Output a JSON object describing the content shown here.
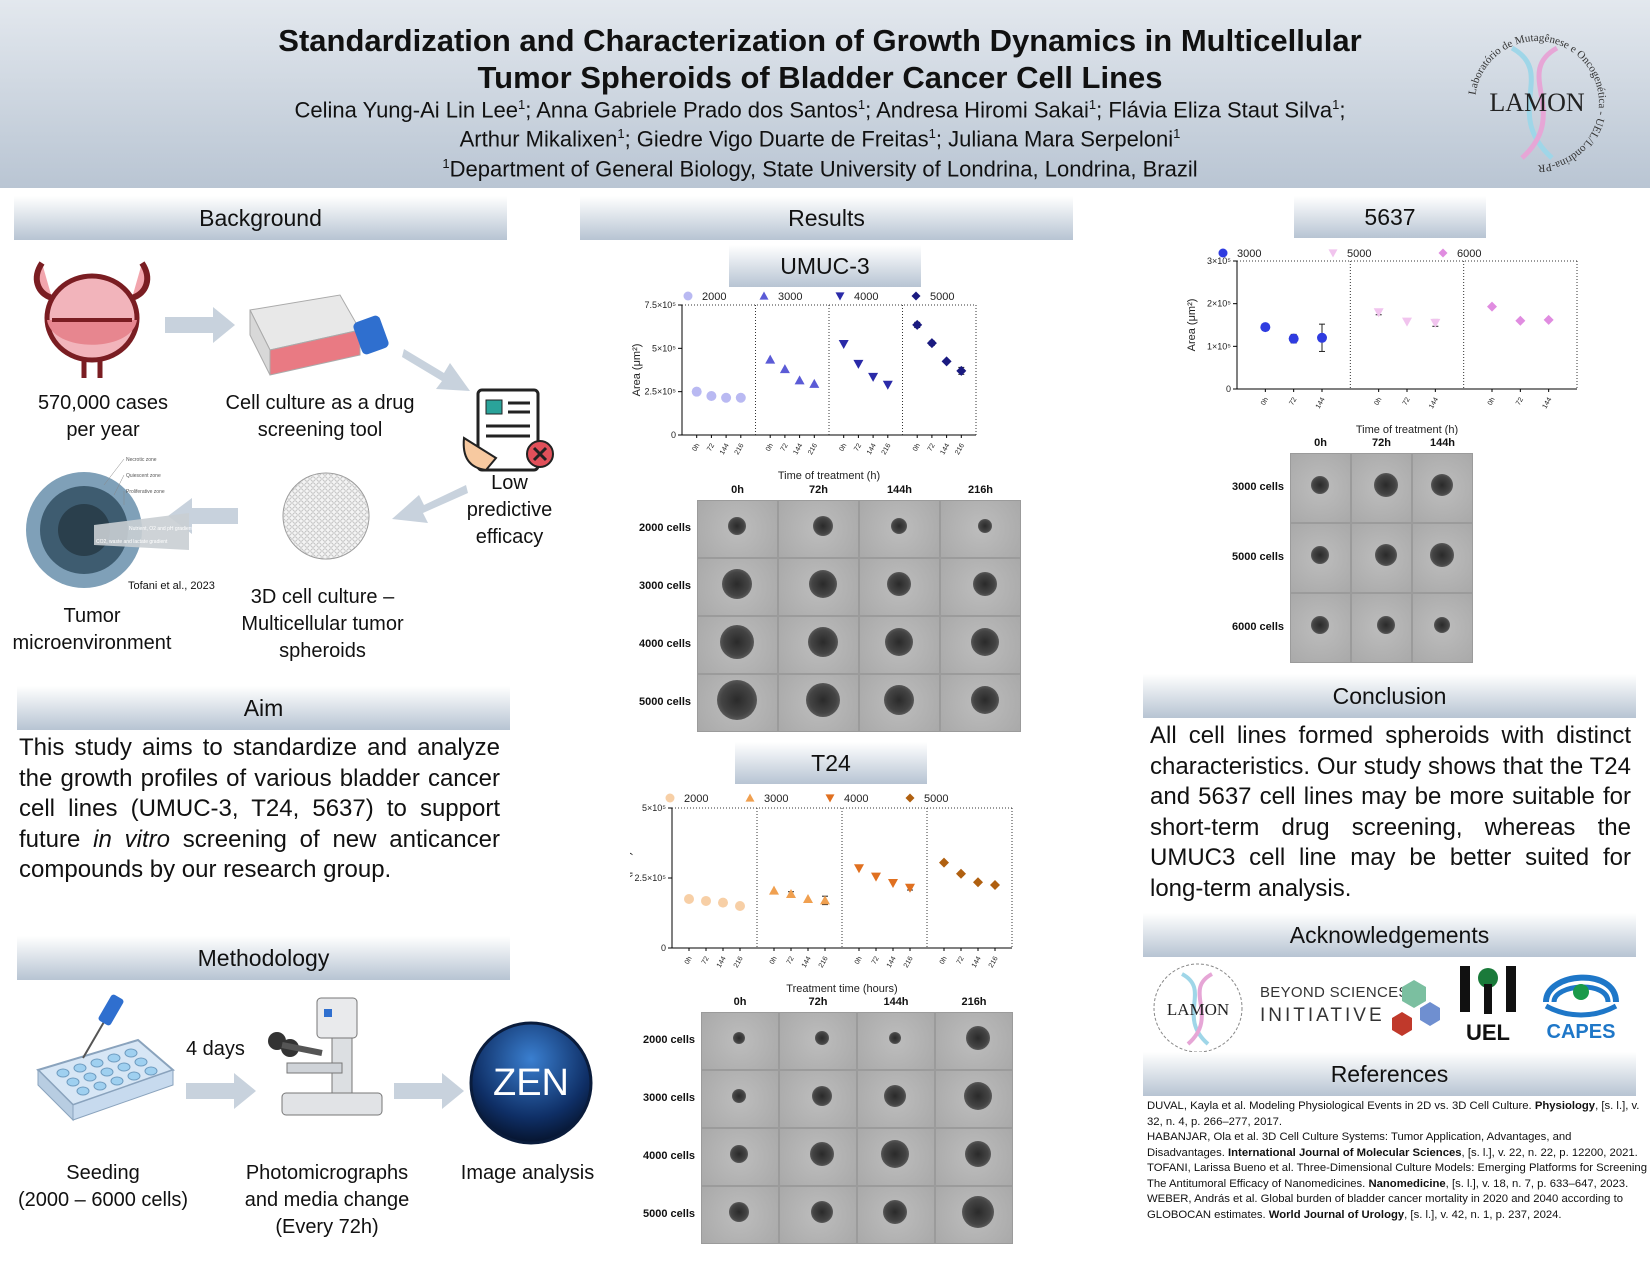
{
  "header": {
    "title_line1": "Standardization and Characterization of Growth Dynamics in Multicellular",
    "title_line2": "Tumor Spheroids of Bladder Cancer Cell Lines",
    "authors_line1": [
      {
        "name": "Celina Yung-Ai Lin Lee",
        "sup": "1",
        "sep": "; "
      },
      {
        "name": "Anna Gabriele Prado dos Santos",
        "sup": "1",
        "sep": "; "
      },
      {
        "name": "Andresa Hiromi Sakai",
        "sup": "1",
        "sep": "; "
      },
      {
        "name": "Flávia Eliza Staut Silva",
        "sup": "1",
        "sep": ";"
      }
    ],
    "authors_line2": [
      {
        "name": "Arthur Mikalixen",
        "sup": "1",
        "sep": "; "
      },
      {
        "name": "Giedre Vigo Duarte de Freitas",
        "sup": "1",
        "sep": "; "
      },
      {
        "name": "Juliana Mara Serpeloni",
        "sup": "1",
        "sep": ""
      }
    ],
    "affiliation_sup": "1",
    "affiliation": "Department of General Biology, State University of Londrina, Londrina, Brazil",
    "logo_text": "LAMON",
    "logo_ring": "Laboratório de Mutagênese e Oncogenética - UEL/Londrina-PR"
  },
  "background": {
    "heading": "Background",
    "item1": "570,000 cases per year",
    "item1_l1": "570,000 cases",
    "item1_l2": "per year",
    "item2_l1": "Cell culture as a drug",
    "item2_l2": "screening tool",
    "item3_l1": "Low",
    "item3_l2": "predictive",
    "item3_l3": "efficacy",
    "item4_l1": "3D cell culture –",
    "item4_l2": "Multicellular tumor",
    "item4_l3": "spheroids",
    "item5_l1": "Tumor",
    "item5_l2": "microenvironment",
    "tme_citation": "Tofani et al., 2023",
    "tme_zone1": "Necrotic zone",
    "tme_zone2": "Quiescent zone",
    "tme_zone3": "Proliferative zone",
    "tme_gradient": "Nutrient, O2 and pH gradient",
    "tme_waste": "CO2, waste and lactate gradient"
  },
  "aim": {
    "heading": "Aim",
    "text_before": "This study aims to standardize and analyze the growth profiles of various bladder cancer cell lines (UMUC-3, T24, 5637) to support future ",
    "text_italic": "in vitro",
    "text_after": " screening of new anticancer compounds by our research group."
  },
  "methodology": {
    "heading": "Methodology",
    "step1_l1": "Seeding",
    "step1_l2": "(2000 – 6000 cells)",
    "interval": "4 days",
    "step2_l1": "Photomicrographs",
    "step2_l2": "and media change",
    "step2_l3": "(Every 72h)",
    "step3": "Image analysis",
    "zen_logo": "ZEN"
  },
  "results": {
    "heading": "Results",
    "umuc_heading": "UMUC-3",
    "t24_heading": "T24",
    "c5637_heading": "5637"
  },
  "chart_data": [
    {
      "type": "scatter",
      "id": "umuc3",
      "title": "UMUC-3",
      "xlabel": "Time of treatment (h)",
      "ylabel": "Area (μm²)",
      "ylim": [
        0,
        750000
      ],
      "yticks": [
        "0",
        "2.5×10⁵",
        "5×10⁵",
        "7.5×10⁵"
      ],
      "ytick_values": [
        0,
        250000,
        500000,
        750000
      ],
      "categories": [
        "0h",
        "72",
        "144",
        "216"
      ],
      "legend_position": "top",
      "series": [
        {
          "name": "2000",
          "marker": "circle",
          "color": "#b9b9f2",
          "values": [
            250000,
            225000,
            215000,
            215000
          ],
          "err": [
            0,
            0,
            0,
            0
          ]
        },
        {
          "name": "3000",
          "marker": "triangle-up",
          "color": "#5b5bd6",
          "values": [
            435000,
            380000,
            315000,
            295000
          ],
          "err": [
            0,
            0,
            0,
            0
          ]
        },
        {
          "name": "4000",
          "marker": "triangle-down",
          "color": "#2a2aa8",
          "values": [
            525000,
            410000,
            335000,
            290000
          ],
          "err": [
            0,
            0,
            0,
            0
          ]
        },
        {
          "name": "5000",
          "marker": "diamond",
          "color": "#1a1a80",
          "values": [
            635000,
            530000,
            425000,
            370000
          ],
          "err": [
            15000,
            12000,
            8000,
            20000
          ]
        }
      ]
    },
    {
      "type": "scatter",
      "id": "t24",
      "title": "T24",
      "xlabel": "Treatment time (hours)",
      "ylabel": "Area (μm²)",
      "ylim": [
        0,
        500000
      ],
      "yticks": [
        "0",
        "2.5×10⁵",
        "5×10⁵"
      ],
      "ytick_values": [
        0,
        250000,
        500000
      ],
      "categories": [
        "0h",
        "72",
        "144",
        "216"
      ],
      "legend_position": "top",
      "series": [
        {
          "name": "2000",
          "marker": "circle",
          "color": "#f7cfa6",
          "values": [
            175000,
            168000,
            162000,
            150000
          ],
          "err": [
            0,
            0,
            0,
            0
          ]
        },
        {
          "name": "3000",
          "marker": "triangle-up",
          "color": "#f0a050",
          "values": [
            205000,
            193000,
            175000,
            170000
          ],
          "err": [
            0,
            8000,
            0,
            15000
          ]
        },
        {
          "name": "4000",
          "marker": "triangle-down",
          "color": "#e07020",
          "values": [
            285000,
            255000,
            232000,
            215000
          ],
          "err": [
            0,
            0,
            0,
            8000
          ]
        },
        {
          "name": "5000",
          "marker": "diamond",
          "color": "#b06010",
          "values": [
            305000,
            265000,
            235000,
            225000
          ],
          "err": [
            0,
            6000,
            0,
            0
          ]
        }
      ]
    },
    {
      "type": "scatter",
      "id": "c5637",
      "title": "5637",
      "xlabel": "Time of treatment (h)",
      "ylabel": "Area (μm²)",
      "ylim": [
        0,
        300000
      ],
      "yticks": [
        "0",
        "1×10⁵",
        "2×10⁵",
        "3×10⁵"
      ],
      "ytick_values": [
        0,
        100000,
        200000,
        300000
      ],
      "categories": [
        "0h",
        "72",
        "144"
      ],
      "legend_position": "top",
      "series": [
        {
          "name": "3000",
          "marker": "circle",
          "color": "#2f3ce0",
          "values": [
            145000,
            118000,
            120000
          ],
          "err": [
            0,
            10000,
            32000
          ]
        },
        {
          "name": "5000",
          "marker": "triangle-down",
          "color": "#f1c4ee",
          "values": [
            180000,
            158000,
            155000
          ],
          "err": [
            6000,
            0,
            8000
          ]
        },
        {
          "name": "6000",
          "marker": "diamond",
          "color": "#e08ce0",
          "values": [
            193000,
            160000,
            162000
          ],
          "err": [
            0,
            0,
            0
          ]
        }
      ]
    }
  ],
  "micrographs": {
    "umuc3": {
      "cols": [
        "0h",
        "72h",
        "144h",
        "216h"
      ],
      "rows": [
        "2000 cells",
        "3000 cells",
        "4000 cells",
        "5000 cells"
      ]
    },
    "t24": {
      "cols": [
        "0h",
        "72h",
        "144h",
        "216h"
      ],
      "rows": [
        "2000 cells",
        "3000 cells",
        "4000 cells",
        "5000 cells"
      ]
    },
    "c5637": {
      "cols": [
        "0h",
        "72h",
        "144h"
      ],
      "rows": [
        "3000 cells",
        "5000 cells",
        "6000 cells"
      ]
    }
  },
  "conclusion": {
    "heading": "Conclusion",
    "text": "All cell lines formed spheroids with distinct characteristics. Our study shows that the T24 and 5637 cell lines may be more suitable for short-term drug screening, whereas the UMUC3 cell line may be better suited for long-term analysis."
  },
  "acknowledgements": {
    "heading": "Acknowledgements",
    "lamon": "LAMON",
    "beyond_l1": "BEYOND SCIENCES",
    "beyond_l2": "INITIATIVE",
    "uel": "UEL",
    "capes": "CAPES"
  },
  "references": {
    "heading": "References",
    "items": [
      {
        "pre": "DUVAL, Kayla et al. Modeling Physiological Events in 2D vs. 3D Cell Culture. ",
        "bold": "Physiology",
        "post": ", [s. l.], v. 32, n. 4, p. 266–277, 2017."
      },
      {
        "pre": "HABANJAR, Ola et al. 3D Cell Culture Systems: Tumor Application, Advantages, and Disadvantages. ",
        "bold": "International Journal of Molecular Sciences",
        "post": ", [s. l.], v. 22, n. 22, p. 12200, 2021."
      },
      {
        "pre": "TOFANI, Larissa Bueno et al. Three-Dimensional Culture Models: Emerging Platforms for Screening The Antitumoral Efficacy of Nanomedicines. ",
        "bold": "Nanomedicine",
        "post": ", [s. l.], v. 18, n. 7, p. 633–647, 2023."
      },
      {
        "pre": "WEBER, András et al. Global burden of bladder cancer mortality in 2020 and 2040 according to GLOBOCAN estimates. ",
        "bold": "World Journal of Urology",
        "post": ", [s. l.], v. 42, n. 1, p. 237, 2024."
      }
    ]
  },
  "colors": {
    "header_top": "#e3e8ee",
    "header_bottom": "#b9c5d3",
    "section_head": "#b7c4d3",
    "arrow": "#c8d2dd"
  }
}
